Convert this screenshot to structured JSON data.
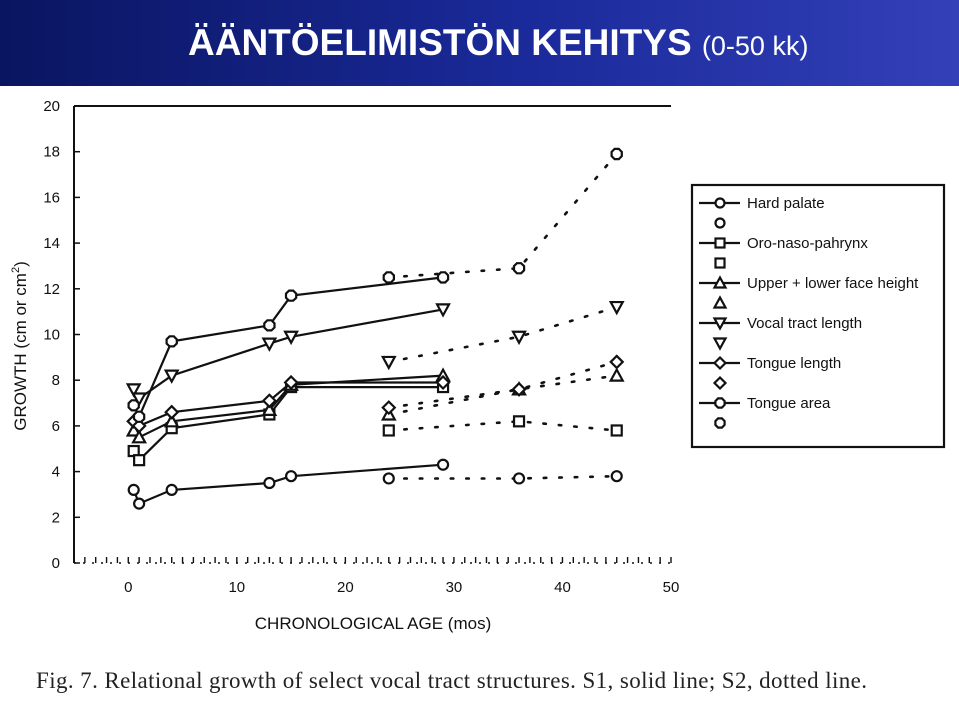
{
  "slide": {
    "title": "ÄÄNTÖELIMISTÖN KEHITYS",
    "title_suffix": "(0-50 kk)",
    "header_color": "#1a2a9a"
  },
  "caption": "Fig. 7. Relational growth of select vocal tract structures. S1, solid line; S2, dotted line.",
  "chart_data": {
    "type": "line",
    "xlabel": "CHRONOLOGICAL AGE (mos)",
    "ylabel": "GROWTH (cm or cm",
    "ylabel_sup": "2",
    "ylabel_end": ")",
    "xlim": [
      -5,
      50
    ],
    "ylim": [
      0,
      20
    ],
    "xticks": [
      0,
      10,
      20,
      30,
      40,
      50
    ],
    "yticks": [
      0,
      2,
      4,
      6,
      8,
      10,
      12,
      14,
      16,
      18,
      20
    ],
    "legend_position": "right",
    "legend": [
      {
        "label": "Hard palate",
        "marker": "circle",
        "line": "solid"
      },
      {
        "label": "",
        "marker": "circle",
        "line": "none"
      },
      {
        "label": "Oro-naso-pahrynx",
        "marker": "square",
        "line": "solid"
      },
      {
        "label": "",
        "marker": "square",
        "line": "none"
      },
      {
        "label": "Upper + lower face height",
        "marker": "triangle-up",
        "line": "solid"
      },
      {
        "label": "",
        "marker": "triangle-up",
        "line": "none"
      },
      {
        "label": "Vocal tract length",
        "marker": "triangle-down",
        "line": "solid"
      },
      {
        "label": "",
        "marker": "triangle-down",
        "line": "none"
      },
      {
        "label": "Tongue length",
        "marker": "diamond",
        "line": "solid"
      },
      {
        "label": "",
        "marker": "diamond",
        "line": "none"
      },
      {
        "label": "Tongue area",
        "marker": "octagon",
        "line": "solid"
      },
      {
        "label": "",
        "marker": "octagon",
        "line": "none"
      }
    ],
    "series": [
      {
        "name": "Hard palate",
        "subject": "S1",
        "marker": "circle",
        "line": "solid",
        "x": [
          0.5,
          1,
          4,
          13,
          15,
          29
        ],
        "y": [
          3.2,
          2.6,
          3.2,
          3.5,
          3.8,
          4.3
        ]
      },
      {
        "name": "Hard palate",
        "subject": "S2",
        "marker": "circle",
        "line": "dotted",
        "x": [
          24,
          36,
          45
        ],
        "y": [
          3.7,
          3.7,
          3.8
        ]
      },
      {
        "name": "Oro-naso-pahrynx",
        "subject": "S1",
        "marker": "square",
        "line": "solid",
        "x": [
          0.5,
          1,
          4,
          13,
          15,
          29
        ],
        "y": [
          4.9,
          4.5,
          5.9,
          6.5,
          7.7,
          7.7
        ]
      },
      {
        "name": "Oro-naso-pahrynx",
        "subject": "S2",
        "marker": "square",
        "line": "dotted",
        "x": [
          24,
          36,
          45
        ],
        "y": [
          5.8,
          6.2,
          5.8
        ]
      },
      {
        "name": "Upper + lower face height",
        "subject": "S1",
        "marker": "triangle-up",
        "line": "solid",
        "x": [
          0.5,
          1,
          4,
          13,
          15,
          29
        ],
        "y": [
          5.8,
          5.5,
          6.2,
          6.7,
          7.8,
          8.2
        ]
      },
      {
        "name": "Upper + lower face height",
        "subject": "S2",
        "marker": "triangle-up",
        "line": "dotted",
        "x": [
          24,
          36,
          45
        ],
        "y": [
          6.5,
          7.6,
          8.2
        ]
      },
      {
        "name": "Vocal tract length",
        "subject": "S1",
        "marker": "triangle-down",
        "line": "solid",
        "x": [
          0.5,
          1,
          4,
          13,
          15,
          29
        ],
        "y": [
          7.6,
          7.2,
          8.2,
          9.6,
          9.9,
          11.1
        ]
      },
      {
        "name": "Vocal tract length",
        "subject": "S2",
        "marker": "triangle-down",
        "line": "dotted",
        "x": [
          24,
          36,
          45
        ],
        "y": [
          8.8,
          9.9,
          11.2
        ]
      },
      {
        "name": "Tongue length",
        "subject": "S1",
        "marker": "diamond",
        "line": "solid",
        "x": [
          0.5,
          1,
          4,
          13,
          15,
          29
        ],
        "y": [
          6.2,
          6.0,
          6.6,
          7.1,
          7.9,
          7.9
        ]
      },
      {
        "name": "Tongue length",
        "subject": "S2",
        "marker": "diamond",
        "line": "dotted",
        "x": [
          24,
          36,
          45
        ],
        "y": [
          6.8,
          7.6,
          8.8
        ]
      },
      {
        "name": "Tongue area",
        "subject": "S1",
        "marker": "octagon",
        "line": "solid",
        "x": [
          0.5,
          1,
          4,
          13,
          15,
          29
        ],
        "y": [
          6.9,
          6.4,
          9.7,
          10.4,
          11.7,
          12.5
        ]
      },
      {
        "name": "Tongue area",
        "subject": "S2",
        "marker": "octagon",
        "line": "dotted",
        "x": [
          24,
          36,
          45
        ],
        "y": [
          12.5,
          12.9,
          17.9
        ]
      }
    ]
  }
}
